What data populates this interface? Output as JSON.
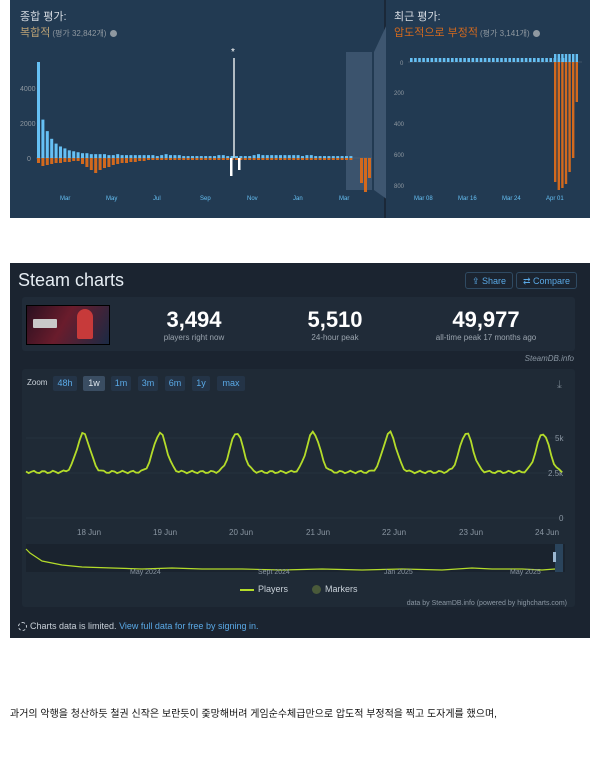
{
  "reviews": {
    "overall_title": "종합 평가:",
    "overall_verdict": "복합적",
    "overall_count": "(평가 32,842개)",
    "recent_title": "최근 평가:",
    "recent_verdict": "압도적으로 부정적",
    "recent_count": "(평가 3,141개)",
    "info_icon": "help-circle-icon",
    "left_y_ticks": [
      "4000",
      "2000",
      "0"
    ],
    "left_x_ticks": [
      "Mar",
      "May",
      "Jul",
      "Sep",
      "Nov",
      "Jan",
      "Mar"
    ],
    "right_y_ticks": [
      "0",
      "200",
      "400",
      "600",
      "800"
    ],
    "right_x_ticks": [
      "Mar 08",
      "Mar 16",
      "Mar 24",
      "Apr 01"
    ],
    "positive_color": "#66c0f4",
    "negative_color": "#d2691e"
  },
  "steam_charts": {
    "title": "Steam charts",
    "share_label": "Share",
    "compare_label": "Compare",
    "players_now": "3,494",
    "players_now_label": "players right now",
    "peak_24h": "5,510",
    "peak_24h_label": "24-hour peak",
    "all_time_peak": "49,977",
    "all_time_peak_label": "all-time peak 17 months ago",
    "watermark": "SteamDB.info",
    "zoom_label": "Zoom",
    "zoom_options": [
      "48h",
      "1w",
      "1m",
      "3m",
      "6m",
      "1y",
      "max"
    ],
    "zoom_selected": "1w",
    "x_ticks": [
      "18 Jun",
      "19 Jun",
      "20 Jun",
      "21 Jun",
      "22 Jun",
      "23 Jun",
      "24 Jun"
    ],
    "y_ticks": [
      "5k",
      "2.5k",
      "0"
    ],
    "navigator_ticks": [
      "May 2024",
      "Sept 2024",
      "Jan 2025",
      "May 2025"
    ],
    "legend_players": "Players",
    "legend_markers": "Markers",
    "credit": "data by SteamDB.info (powered by highcharts.com)",
    "limited_text": "Charts data is limited.",
    "signin_link": "View full data for free by signing in.",
    "line_color": "#b4dc2a"
  },
  "body_text": "과거의 악행을 청산하듯 철권 신작은 보란듯이 줒망해버려 게임순수체급만으로 압도적 부정적을 찍고 도자게를 했으며,"
}
